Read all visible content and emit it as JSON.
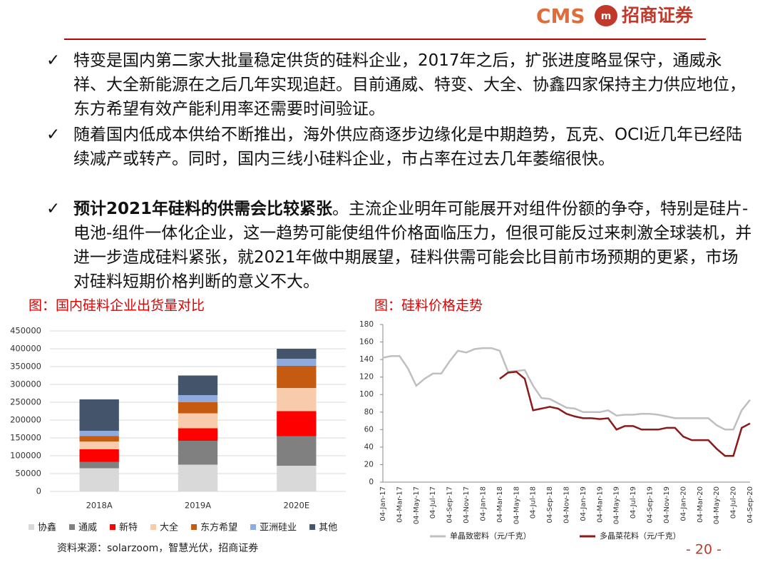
{
  "header": {
    "brand": "CMS",
    "name": "招商证券"
  },
  "bullets": [
    {
      "text": "特变是国内第二家大批量稳定供货的硅料企业，2017年之后，扩张进度略显保守，通威永祥、大全新能源在之后几年实现追赶。目前通威、特变、大全、协鑫四家保持主力供应地位，东方希望有效产能利用率还需要时间验证。"
    },
    {
      "text": "随着国内低成本供给不断推出，海外供应商逐步边缘化是中期趋势，瓦克、OCI近几年已经陆续减产或转产。同时，国内三线小硅料企业，市占率在过去几年萎缩很快。"
    },
    {
      "bold": "预计2021年硅料的供需会比较紧张",
      "text": "。主流企业明年可能展开对组件份额的争夺，特别是硅片-电池-组件一体化企业，这一趋势可能使组件价格面临压力，但很可能反过来刺激全球装机，并进一步造成硅料紧张，就2021年做中期展望，硅料供需可能会比目前市场预期的更紧，市场对硅料短期价格判断的意义不大。"
    }
  ],
  "chart_data": [
    {
      "type": "bar",
      "stacked": true,
      "title": "图：国内硅料企业出货量对比",
      "categories": [
        "2018A",
        "2019A",
        "2020E"
      ],
      "ylim": [
        0,
        450000
      ],
      "yticks": [
        0,
        50000,
        100000,
        150000,
        200000,
        250000,
        300000,
        350000,
        400000,
        450000
      ],
      "grid": true,
      "series": [
        {
          "name": "协鑫",
          "color": "#d9d9d9",
          "values": [
            65000,
            75000,
            72000
          ]
        },
        {
          "name": "通威",
          "color": "#808080",
          "values": [
            18000,
            67000,
            83000
          ]
        },
        {
          "name": "新特",
          "color": "#ff0000",
          "values": [
            35000,
            35000,
            70000
          ]
        },
        {
          "name": "大全",
          "color": "#f8cbad",
          "values": [
            22000,
            42000,
            65000
          ]
        },
        {
          "name": "东方希望",
          "color": "#c55a11",
          "values": [
            15000,
            31000,
            62000
          ]
        },
        {
          "name": "亚洲硅业",
          "color": "#8faadc",
          "values": [
            15000,
            20000,
            20000
          ]
        },
        {
          "name": "其他",
          "color": "#44546a",
          "values": [
            88000,
            55000,
            28000
          ]
        }
      ]
    },
    {
      "type": "line",
      "title": "图：硅料价格走势",
      "categories": [
        "04-Jan-17",
        null,
        "04-Mar-17",
        null,
        "04-May-17",
        null,
        "04-Jul-17",
        null,
        "04-Sep-17",
        null,
        "04-Nov-17",
        null,
        "04-Jan-18",
        null,
        "04-Mar-18",
        null,
        "04-May-18",
        null,
        "04-Jul-18",
        null,
        "04-Sep-18",
        null,
        "04-Nov-18",
        null,
        "04-Jan-19",
        null,
        "04-Mar-19",
        null,
        "04-May-19",
        null,
        "04-Jul-19",
        null,
        "04-Sep-19",
        null,
        "04-Nov-19",
        null,
        "04-Jan-20",
        null,
        "04-Mar-20",
        null,
        "04-May-20",
        null,
        "04-Jul-20",
        null,
        "04-Sep-20"
      ],
      "ylim": [
        0,
        180
      ],
      "yticks": [
        0,
        20,
        40,
        60,
        80,
        100,
        120,
        140,
        160,
        180
      ],
      "grid": false,
      "series": [
        {
          "name": "单晶致密料（元/千克）",
          "color": "#bfbfbf",
          "values": [
            142,
            144,
            144,
            130,
            110,
            118,
            124,
            124,
            138,
            150,
            148,
            152,
            153,
            153,
            150,
            126,
            127,
            128,
            110,
            96,
            95,
            90,
            85,
            84,
            80,
            80,
            80,
            82,
            76,
            77,
            77,
            78,
            78,
            77,
            75,
            73,
            73,
            73,
            73,
            73,
            65,
            60,
            60,
            82,
            94
          ]
        },
        {
          "name": "多晶菜花料（元/千克）",
          "color": "#8b1a1a",
          "values": [
            null,
            null,
            null,
            null,
            null,
            null,
            null,
            null,
            null,
            null,
            null,
            null,
            null,
            null,
            118,
            125,
            126,
            118,
            82,
            84,
            86,
            84,
            78,
            75,
            73,
            73,
            72,
            73,
            60,
            64,
            64,
            60,
            60,
            60,
            62,
            62,
            52,
            48,
            48,
            48,
            38,
            30,
            30,
            62,
            67
          ]
        }
      ]
    }
  ],
  "source": "资料来源：solarzoom，智慧光伏，招商证券",
  "page_number": "- 20 -"
}
